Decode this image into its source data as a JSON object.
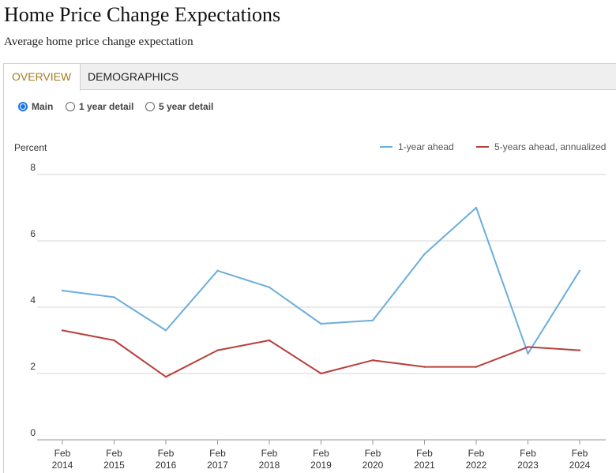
{
  "header": {
    "title": "Home Price Change Expectations",
    "subtitle": "Average home price change expectation"
  },
  "tabs": [
    {
      "label": "OVERVIEW",
      "active": true
    },
    {
      "label": "DEMOGRAPHICS",
      "active": false
    }
  ],
  "view_options": [
    {
      "label": "Main",
      "checked": true
    },
    {
      "label": "1 year detail",
      "checked": false
    },
    {
      "label": "5 year detail",
      "checked": false
    }
  ],
  "colors": {
    "accent": "#a57b1e",
    "radio": "#1a73e8",
    "series_1yr": "#6aaedc",
    "series_5yr": "#b8403a"
  },
  "chart_data": {
    "type": "line",
    "ylabel": "Percent",
    "ylim": [
      0,
      8
    ],
    "yticks": [
      0,
      2,
      4,
      6,
      8
    ],
    "grid": true,
    "legend_position": "top-right",
    "x": [
      "Feb 2014",
      "Feb 2015",
      "Feb 2016",
      "Feb 2017",
      "Feb 2018",
      "Feb 2019",
      "Feb 2020",
      "Feb 2021",
      "Feb 2022",
      "Feb 2023",
      "Feb 2024"
    ],
    "x_tick_labels": [
      [
        "Feb",
        "2014"
      ],
      [
        "Feb",
        "2015"
      ],
      [
        "Feb",
        "2016"
      ],
      [
        "Feb",
        "2017"
      ],
      [
        "Feb",
        "2018"
      ],
      [
        "Feb",
        "2019"
      ],
      [
        "Feb",
        "2020"
      ],
      [
        "Feb",
        "2021"
      ],
      [
        "Feb",
        "2022"
      ],
      [
        "Feb",
        "2023"
      ],
      [
        "Feb",
        "2024"
      ]
    ],
    "series": [
      {
        "name": "1-year ahead",
        "color": "#6aaedc",
        "values": [
          4.5,
          4.3,
          3.3,
          5.1,
          4.6,
          3.5,
          3.6,
          5.6,
          7.0,
          2.6,
          5.1
        ]
      },
      {
        "name": "5-years ahead, annualized",
        "color": "#b8403a",
        "values": [
          3.3,
          3.0,
          1.9,
          2.7,
          3.0,
          2.0,
          2.4,
          2.2,
          2.2,
          2.8,
          2.7
        ]
      }
    ]
  }
}
